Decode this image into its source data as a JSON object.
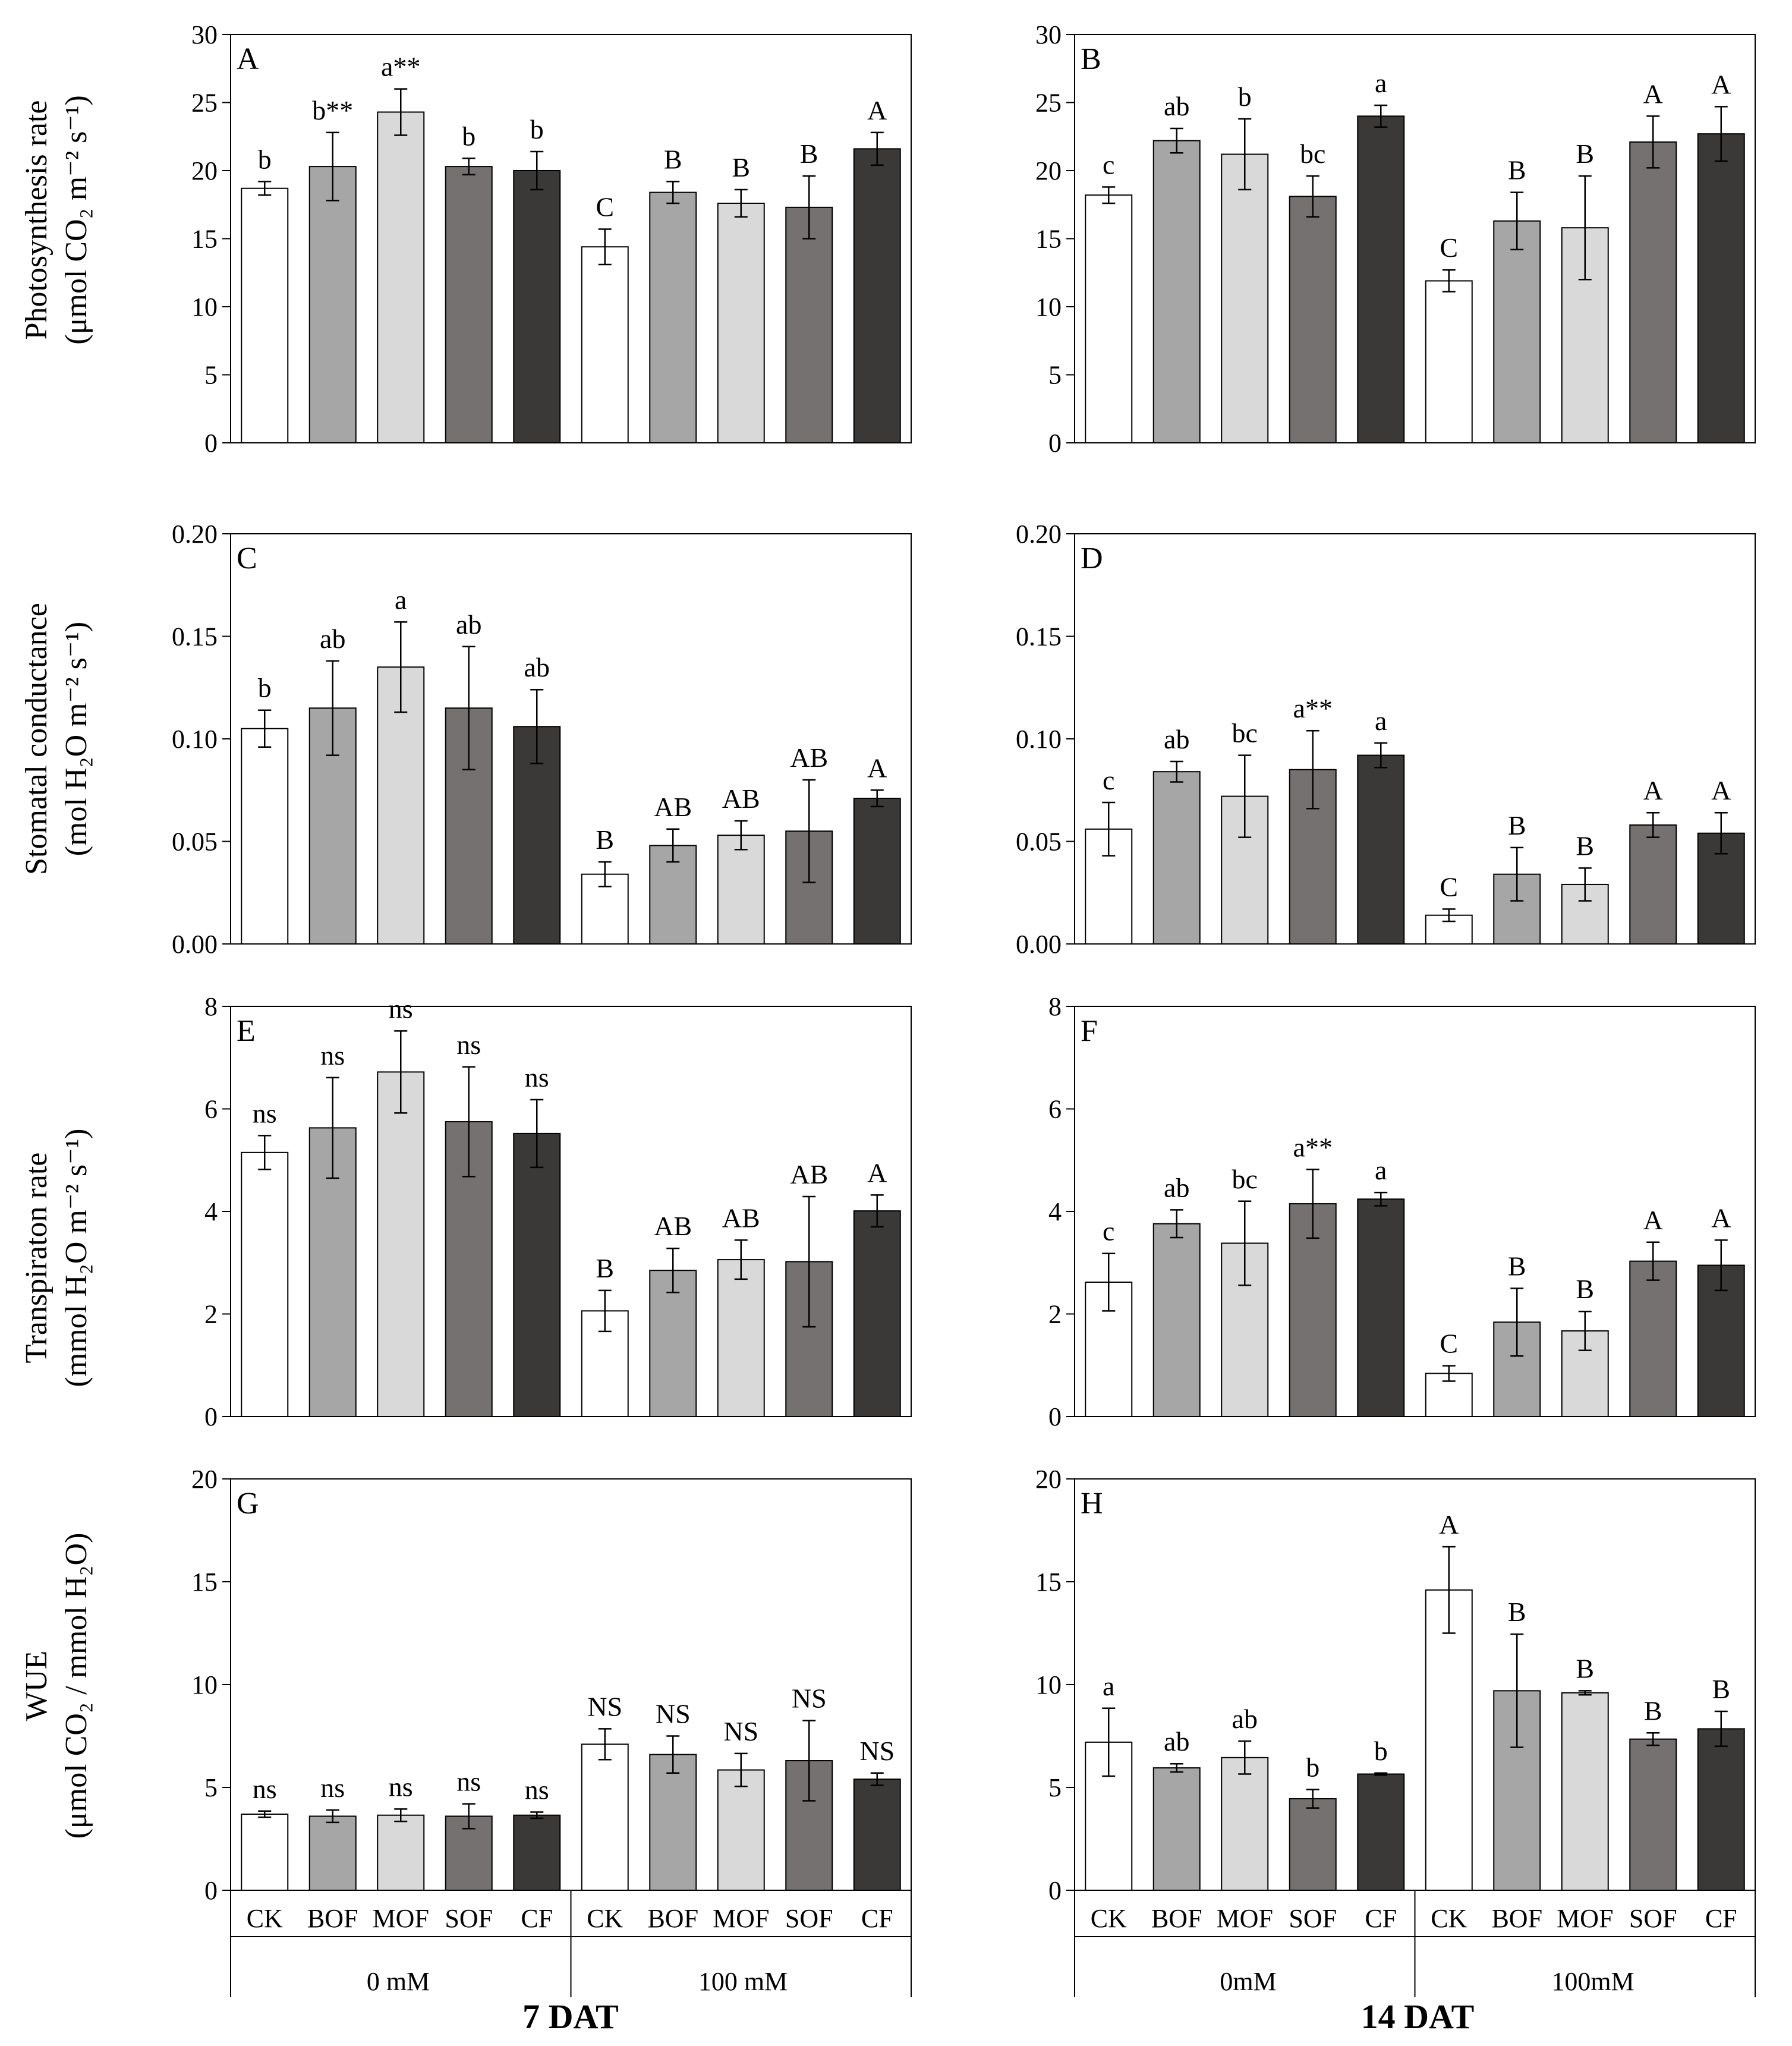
{
  "colors": {
    "CK": "#ffffff",
    "BOF": "#a6a6a6",
    "MOF": "#d9d9d9",
    "SOF": "#767171",
    "CF": "#3b3838",
    "stroke": "#000000"
  },
  "categories": [
    "CK",
    "BOF",
    "MOF",
    "SOF",
    "CF",
    "CK",
    "BOF",
    "MOF",
    "SOF",
    "CF"
  ],
  "bottom_axis": {
    "left": {
      "groups": [
        "0 mM",
        "100 mM"
      ],
      "title": "7 DAT"
    },
    "right": {
      "groups": [
        "0mM",
        "100mM"
      ],
      "title": "14 DAT"
    }
  },
  "row_labels": [
    {
      "line1": "Photosynthesis rate",
      "line2": "(μmol CO₂ m⁻² s⁻¹)"
    },
    {
      "line1": "Stomatal conductance",
      "line2": "(mol H₂O m⁻² s⁻¹)"
    },
    {
      "line1": "Transpiraton rate",
      "line2": "(mmol H₂O m⁻² s⁻¹)"
    },
    {
      "line1": "WUE",
      "line2": "(μmol CO₂ / mmol H₂O)"
    }
  ],
  "chart_data": [
    {
      "type": "bar",
      "panel": "A",
      "ylim": [
        0,
        30
      ],
      "yticks": [
        "0",
        "5",
        "10",
        "15",
        "20",
        "25",
        "30"
      ],
      "categories": [
        "CK",
        "BOF",
        "MOF",
        "SOF",
        "CF",
        "CK",
        "BOF",
        "MOF",
        "SOF",
        "CF"
      ],
      "values": [
        18.7,
        20.3,
        24.3,
        20.3,
        20.0,
        14.4,
        18.4,
        17.6,
        17.3,
        21.6
      ],
      "errors": [
        0.5,
        2.5,
        1.7,
        0.6,
        1.4,
        1.3,
        0.8,
        1.0,
        2.3,
        1.2
      ],
      "annotations": [
        "b",
        "b**",
        "a**",
        "b",
        "b",
        "C",
        "B",
        "B",
        "B",
        "A"
      ]
    },
    {
      "type": "bar",
      "panel": "B",
      "ylim": [
        0,
        30
      ],
      "yticks": [
        "0",
        "5",
        "10",
        "15",
        "20",
        "25",
        "30"
      ],
      "categories": [
        "CK",
        "BOF",
        "MOF",
        "SOF",
        "CF",
        "CK",
        "BOF",
        "MOF",
        "SOF",
        "CF"
      ],
      "values": [
        18.2,
        22.2,
        21.2,
        18.1,
        24.0,
        11.9,
        16.3,
        15.8,
        22.1,
        22.7
      ],
      "errors": [
        0.6,
        0.9,
        2.6,
        1.5,
        0.8,
        0.8,
        2.1,
        3.8,
        1.9,
        2.0
      ],
      "annotations": [
        "c",
        "ab",
        "b",
        "bc",
        "a",
        "C",
        "B",
        "B",
        "A",
        "A"
      ]
    },
    {
      "type": "bar",
      "panel": "C",
      "ylim": [
        0,
        0.2
      ],
      "yticks": [
        "0.00",
        "0.05",
        "0.10",
        "0.15",
        "0.20"
      ],
      "categories": [
        "CK",
        "BOF",
        "MOF",
        "SOF",
        "CF",
        "CK",
        "BOF",
        "MOF",
        "SOF",
        "CF"
      ],
      "values": [
        0.105,
        0.115,
        0.135,
        0.115,
        0.106,
        0.034,
        0.048,
        0.053,
        0.055,
        0.071
      ],
      "errors": [
        0.009,
        0.023,
        0.022,
        0.03,
        0.018,
        0.006,
        0.008,
        0.007,
        0.025,
        0.004
      ],
      "annotations": [
        "b",
        "ab",
        "a",
        "ab",
        "ab",
        "B",
        "AB",
        "AB",
        "AB",
        "A"
      ]
    },
    {
      "type": "bar",
      "panel": "D",
      "ylim": [
        0,
        0.2
      ],
      "yticks": [
        "0.00",
        "0.05",
        "0.10",
        "0.15",
        "0.20"
      ],
      "categories": [
        "CK",
        "BOF",
        "MOF",
        "SOF",
        "CF",
        "CK",
        "BOF",
        "MOF",
        "SOF",
        "CF"
      ],
      "values": [
        0.056,
        0.084,
        0.072,
        0.085,
        0.092,
        0.014,
        0.034,
        0.029,
        0.058,
        0.054
      ],
      "errors": [
        0.013,
        0.005,
        0.02,
        0.019,
        0.006,
        0.003,
        0.013,
        0.008,
        0.006,
        0.01
      ],
      "annotations": [
        "c",
        "ab",
        "bc",
        "a**",
        "a",
        "C",
        "B",
        "B",
        "A",
        "A"
      ]
    },
    {
      "type": "bar",
      "panel": "E",
      "ylim": [
        0,
        8
      ],
      "yticks": [
        "0",
        "2",
        "4",
        "6",
        "8"
      ],
      "categories": [
        "CK",
        "BOF",
        "MOF",
        "SOF",
        "CF",
        "CK",
        "BOF",
        "MOF",
        "SOF",
        "CF"
      ],
      "values": [
        5.15,
        5.63,
        6.72,
        5.75,
        5.52,
        2.06,
        2.85,
        3.06,
        3.02,
        4.01
      ],
      "errors": [
        0.33,
        0.98,
        0.8,
        1.07,
        0.66,
        0.4,
        0.43,
        0.38,
        1.27,
        0.31
      ],
      "annotations": [
        "ns",
        "ns",
        "ns",
        "ns",
        "ns",
        "B",
        "AB",
        "AB",
        "AB",
        "A"
      ]
    },
    {
      "type": "bar",
      "panel": "F",
      "ylim": [
        0,
        8
      ],
      "yticks": [
        "0",
        "2",
        "4",
        "6",
        "8"
      ],
      "categories": [
        "CK",
        "BOF",
        "MOF",
        "SOF",
        "CF",
        "CK",
        "BOF",
        "MOF",
        "SOF",
        "CF"
      ],
      "values": [
        2.62,
        3.76,
        3.38,
        4.15,
        4.24,
        0.84,
        1.84,
        1.67,
        3.03,
        2.95
      ],
      "errors": [
        0.56,
        0.27,
        0.82,
        0.67,
        0.13,
        0.15,
        0.66,
        0.38,
        0.37,
        0.49
      ],
      "annotations": [
        "c",
        "ab",
        "bc",
        "a**",
        "a",
        "C",
        "B",
        "B",
        "A",
        "A"
      ]
    },
    {
      "type": "bar",
      "panel": "G",
      "ylim": [
        0,
        20
      ],
      "yticks": [
        "0",
        "5",
        "10",
        "15",
        "20"
      ],
      "categories": [
        "CK",
        "BOF",
        "MOF",
        "SOF",
        "CF",
        "CK",
        "BOF",
        "MOF",
        "SOF",
        "CF"
      ],
      "values": [
        3.7,
        3.6,
        3.65,
        3.6,
        3.65,
        7.1,
        6.6,
        5.85,
        6.3,
        5.4
      ],
      "errors": [
        0.15,
        0.3,
        0.3,
        0.6,
        0.15,
        0.75,
        0.9,
        0.8,
        1.95,
        0.3
      ],
      "annotations": [
        "ns",
        "ns",
        "ns",
        "ns",
        "ns",
        "NS",
        "NS",
        "NS",
        "NS",
        "NS"
      ]
    },
    {
      "type": "bar",
      "panel": "H",
      "ylim": [
        0,
        20
      ],
      "yticks": [
        "0",
        "5",
        "10",
        "15",
        "20"
      ],
      "categories": [
        "CK",
        "BOF",
        "MOF",
        "SOF",
        "CF",
        "CK",
        "BOF",
        "MOF",
        "SOF",
        "CF"
      ],
      "values": [
        7.2,
        5.95,
        6.45,
        4.45,
        5.65,
        14.6,
        9.7,
        9.6,
        7.35,
        7.85
      ],
      "errors": [
        1.65,
        0.2,
        0.8,
        0.45,
        0.05,
        2.1,
        2.75,
        0.1,
        0.3,
        0.85
      ],
      "annotations": [
        "a",
        "ab",
        "ab",
        "b",
        "b",
        "A",
        "B",
        "B",
        "B",
        "B"
      ]
    }
  ]
}
